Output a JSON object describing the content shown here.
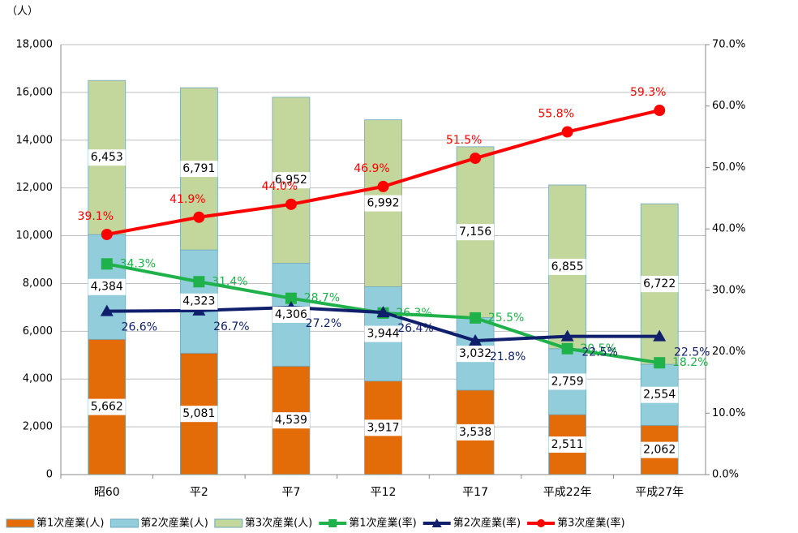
{
  "chart_data": {
    "type": "bar_line",
    "y_unit_label": "（人）",
    "categories": [
      "昭60",
      "平2",
      "平7",
      "平12",
      "平17",
      "平成22年",
      "平成27年"
    ],
    "ylim": [
      0,
      18000
    ],
    "yticks": [
      0,
      {
        "value": 2000,
        "label": "2,000"
      },
      {
        "value": 4000,
        "label": "4,000"
      },
      {
        "value": 6000,
        "label": "6,000"
      },
      {
        "value": 8000,
        "label": "8,000"
      },
      {
        "value": 10000,
        "label": "10,000"
      },
      {
        "value": 12000,
        "label": "12,000"
      },
      {
        "value": 14000,
        "label": "14,000"
      },
      {
        "value": 16000,
        "label": "16,000"
      },
      {
        "value": 18000,
        "label": "18,000"
      }
    ],
    "y2lim": [
      0,
      70
    ],
    "y2ticks": [
      {
        "value": 0,
        "label": "0.0%"
      },
      {
        "value": 10,
        "label": "10.0%"
      },
      {
        "value": 20,
        "label": "20.0%"
      },
      {
        "value": 30,
        "label": "30.0%"
      },
      {
        "value": 40,
        "label": "40.0%"
      },
      {
        "value": 50,
        "label": "50.0%"
      },
      {
        "value": 60,
        "label": "60.0%"
      },
      {
        "value": 70,
        "label": "70.0%"
      }
    ],
    "grid": true,
    "series": [
      {
        "name": "第1次産業(人)",
        "kind": "bar",
        "color": "#e36c09",
        "values": [
          5662,
          5081,
          4539,
          3917,
          3538,
          2511,
          2062
        ],
        "value_labels": [
          "5,662",
          "5,081",
          "4,539",
          "3,917",
          "3,538",
          "2,511",
          "2,062"
        ]
      },
      {
        "name": "第2次産業(人)",
        "kind": "bar",
        "color": "#92cddc",
        "values": [
          4384,
          4323,
          4306,
          3944,
          3032,
          2759,
          2554
        ],
        "value_labels": [
          "4,384",
          "4,323",
          "4,306",
          "3,944",
          "3,032",
          "2,759",
          "2,554"
        ]
      },
      {
        "name": "第3次産業(人)",
        "kind": "bar",
        "color": "#c3d69b",
        "values": [
          6453,
          6791,
          6952,
          6992,
          7156,
          6855,
          6722
        ],
        "value_labels": [
          "6,453",
          "6,791",
          "6,952",
          "6,992",
          "7,156",
          "6,855",
          "6,722"
        ]
      },
      {
        "name": "第1次産業(率)",
        "kind": "line",
        "axis": "y2",
        "marker": "square",
        "color": "#1fb24a",
        "values": [
          34.3,
          31.4,
          28.7,
          26.3,
          25.5,
          20.5,
          18.2
        ],
        "value_labels": [
          "34.3%",
          "31.4%",
          "28.7%",
          "26.3%",
          "25.5%",
          "20.5%",
          "18.2%"
        ]
      },
      {
        "name": "第2次産業(率)",
        "kind": "line",
        "axis": "y2",
        "marker": "triangle",
        "color": "#0f1f6b",
        "values": [
          26.6,
          26.7,
          27.2,
          26.4,
          21.8,
          22.5,
          22.5
        ],
        "value_labels": [
          "26.6%",
          "26.7%",
          "27.2%",
          "26.4%",
          "21.8%",
          "22.5%",
          "22.5%"
        ]
      },
      {
        "name": "第3次産業(率)",
        "kind": "line",
        "axis": "y2",
        "marker": "circle",
        "color": "#ff0000",
        "values": [
          39.1,
          41.9,
          44.0,
          46.9,
          51.5,
          55.8,
          59.3
        ],
        "value_labels": [
          "39.1%",
          "41.9%",
          "44.0%",
          "46.9%",
          "51.5%",
          "55.8%",
          "59.3%"
        ]
      }
    ]
  }
}
